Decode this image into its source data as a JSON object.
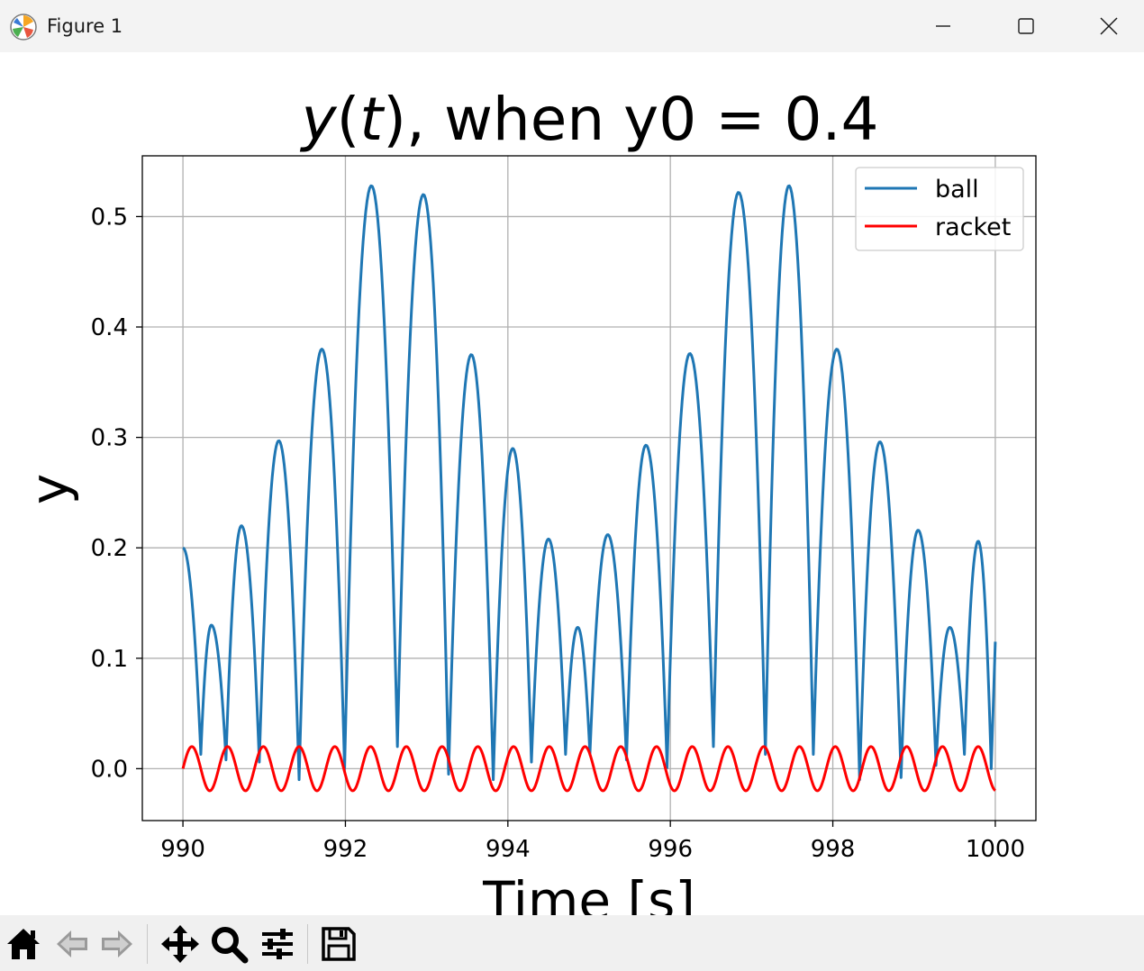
{
  "window": {
    "title": "Figure 1",
    "controls": [
      "minimize",
      "maximize",
      "close"
    ]
  },
  "toolbar": {
    "tools": [
      {
        "name": "home",
        "icon": "home-icon",
        "enabled": true
      },
      {
        "name": "back",
        "icon": "back-arrow-icon",
        "enabled": false
      },
      {
        "name": "forward",
        "icon": "forward-arrow-icon",
        "enabled": false
      },
      {
        "name": "pan",
        "icon": "pan-move-icon",
        "enabled": true
      },
      {
        "name": "zoom",
        "icon": "zoom-magnifier-icon",
        "enabled": true
      },
      {
        "name": "configure-subplots",
        "icon": "sliders-icon",
        "enabled": true
      },
      {
        "name": "save",
        "icon": "save-floppy-icon",
        "enabled": true
      }
    ]
  },
  "figure": {
    "title_y": "y",
    "title_t": "t",
    "title_rest": ", when y0 = 0.4",
    "xlabel": "Time [s]",
    "ylabel": "y"
  },
  "chart_data": {
    "type": "line",
    "title": "y(t), when y0 = 0.4",
    "xlabel": "Time [s]",
    "ylabel": "y",
    "xlim": [
      989.5,
      1000.5
    ],
    "ylim": [
      -0.047,
      0.555
    ],
    "xticks": [
      990,
      992,
      994,
      996,
      998,
      1000
    ],
    "xtick_labels": [
      "990",
      "992",
      "994",
      "996",
      "998",
      "1000"
    ],
    "yticks": [
      0.0,
      0.1,
      0.2,
      0.3,
      0.4,
      0.5
    ],
    "ytick_labels": [
      "0.0",
      "0.1",
      "0.2",
      "0.3",
      "0.4",
      "0.5"
    ],
    "grid": true,
    "legend": {
      "placement": "upper right",
      "entries": [
        "ball",
        "racket"
      ]
    },
    "series": [
      {
        "name": "ball",
        "color": "#1f77b4",
        "start": [
          990.0,
          0.2
        ],
        "bounces": [
          [
            990.22,
            0.013
          ],
          [
            990.53,
            0.008
          ],
          [
            990.94,
            0.006
          ],
          [
            991.43,
            -0.01
          ],
          [
            991.99,
            0.0
          ],
          [
            992.64,
            0.02
          ],
          [
            993.27,
            -0.005
          ],
          [
            993.82,
            -0.01
          ],
          [
            994.29,
            0.006
          ],
          [
            994.71,
            0.013
          ],
          [
            995.01,
            0.013
          ],
          [
            995.46,
            0.008
          ],
          [
            995.96,
            0.001
          ],
          [
            996.53,
            0.02
          ],
          [
            997.17,
            0.013
          ],
          [
            997.76,
            0.013
          ],
          [
            998.33,
            -0.01
          ],
          [
            998.84,
            -0.008
          ],
          [
            999.27,
            0.003
          ],
          [
            999.62,
            0.013
          ],
          [
            999.95,
            0.0
          ]
        ],
        "peaks": [
          [
            990.35,
            0.13
          ],
          [
            990.72,
            0.22
          ],
          [
            991.18,
            0.297
          ],
          [
            991.71,
            0.38
          ],
          [
            992.32,
            0.528
          ],
          [
            992.96,
            0.52
          ],
          [
            993.55,
            0.375
          ],
          [
            994.06,
            0.29
          ],
          [
            994.5,
            0.208
          ],
          [
            994.86,
            0.128
          ],
          [
            995.23,
            0.212
          ],
          [
            995.7,
            0.293
          ],
          [
            996.24,
            0.376
          ],
          [
            996.84,
            0.522
          ],
          [
            997.46,
            0.528
          ],
          [
            998.05,
            0.38
          ],
          [
            998.58,
            0.296
          ],
          [
            999.05,
            0.216
          ],
          [
            999.44,
            0.128
          ],
          [
            999.79,
            0.206
          ]
        ],
        "end": [
          1000.0,
          0.115
        ]
      },
      {
        "name": "racket",
        "color": "#ff0000",
        "amplitude": 0.02,
        "period": 0.44,
        "phase_start": 990.0,
        "x_range": [
          990.0,
          1000.0
        ]
      }
    ]
  }
}
